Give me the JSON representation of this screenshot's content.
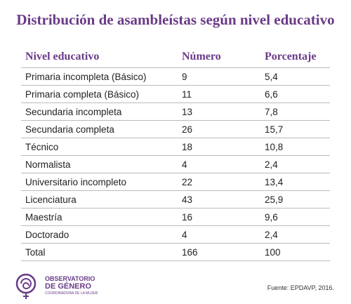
{
  "header": {
    "title": "Distribución de asambleístas según nivel educativo"
  },
  "table": {
    "columns": [
      "Nivel educativo",
      "Número",
      "Porcentaje"
    ],
    "rows": [
      [
        "Primaria incompleta (Básico)",
        "9",
        "5,4"
      ],
      [
        "Primaria completa (Básico)",
        "11",
        "6,6"
      ],
      [
        "Secundaria incompleta",
        "13",
        "7,8"
      ],
      [
        "Secundaria completa",
        "26",
        "15,7"
      ],
      [
        "Técnico",
        "18",
        "10,8"
      ],
      [
        "Normalista",
        "4",
        "2,4"
      ],
      [
        "Universitario incompleto",
        "22",
        "13,4"
      ],
      [
        "Licenciatura",
        "43",
        "25,9"
      ],
      [
        "Maestría",
        "16",
        "9,6"
      ],
      [
        "Doctorado",
        "4",
        "2,4"
      ],
      [
        "Total",
        "166",
        "100"
      ]
    ]
  },
  "footer": {
    "logo_line1": "OBSERVATORIO",
    "logo_line2": "DE GÉNERO",
    "logo_line3": "COORDINADORA DE LA MUJER",
    "source": "Fuente: EPDAVP, 2016."
  }
}
